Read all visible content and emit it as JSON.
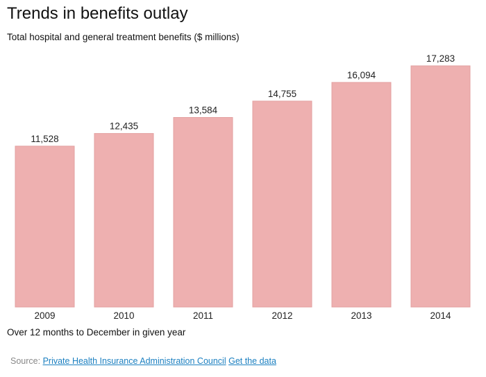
{
  "chart_data": {
    "type": "bar",
    "title": "Trends in benefits outlay",
    "subtitle": "Total hospital and general treatment benefits ($ millions)",
    "categories": [
      "2009",
      "2010",
      "2011",
      "2012",
      "2013",
      "2014"
    ],
    "values": [
      11528,
      12435,
      13584,
      14755,
      16094,
      17283
    ],
    "value_labels": [
      "11,528",
      "12,435",
      "13,584",
      "14,755",
      "16,094",
      "17,283"
    ],
    "xlabel": "",
    "ylabel": "",
    "ylim": [
      0,
      17283
    ],
    "grid": false,
    "legend": "none",
    "bar_color": "#EEB0B0",
    "bar_border_color": "#E3A0A0"
  },
  "footer": {
    "note": "Over 12 months to December in given year",
    "source_label": "Source:",
    "source_link": "Private Health Insurance Administration Council",
    "data_link": "Get the data",
    "link_color": "#1A7FC0"
  }
}
